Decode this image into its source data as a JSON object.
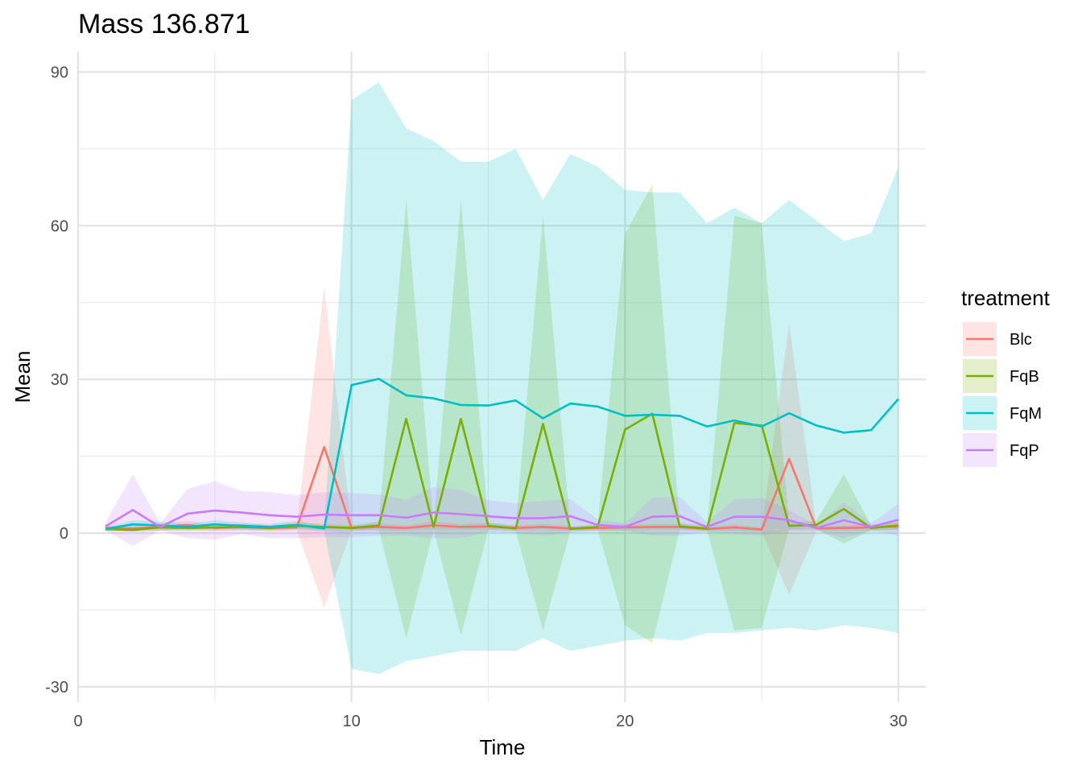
{
  "chart_data": {
    "type": "line",
    "title": "Mass 136.871",
    "xlabel": "Time",
    "ylabel": "Mean",
    "xlim": [
      0,
      31
    ],
    "ylim": [
      -33,
      94
    ],
    "xticks": [
      0,
      10,
      20,
      30
    ],
    "xtick_labels": [
      "0",
      "10",
      "20",
      "30"
    ],
    "yticks": [
      -30,
      0,
      30,
      60,
      90
    ],
    "ytick_labels": [
      "-30",
      "0",
      "30",
      "60",
      "90"
    ],
    "grid": true,
    "legend": {
      "title": "treatment",
      "position": "right"
    },
    "series": [
      {
        "name": "Blc",
        "color": "#F8766D",
        "x": [
          1,
          2,
          3,
          4,
          5,
          6,
          7,
          8,
          9,
          10,
          11,
          12,
          13,
          14,
          15,
          16,
          17,
          18,
          19,
          20,
          21,
          22,
          23,
          24,
          25,
          26,
          27,
          28,
          29,
          30
        ],
        "mean": [
          1.0,
          0.9,
          1.2,
          1.6,
          1.0,
          1.2,
          1.0,
          1.1,
          16.8,
          1.0,
          1.2,
          1.0,
          1.5,
          1.2,
          1.3,
          1.0,
          1.2,
          0.9,
          1.0,
          1.1,
          1.2,
          1.2,
          0.8,
          1.1,
          0.7,
          14.5,
          0.9,
          1.0,
          1.1,
          1.3
        ],
        "lower": [
          0.5,
          0.4,
          0.5,
          0.8,
          0.5,
          0.6,
          0.5,
          0.5,
          -14.5,
          0.5,
          0.5,
          0.5,
          0.7,
          0.6,
          0.6,
          0.5,
          0.6,
          0.4,
          0.5,
          0.5,
          0.6,
          0.6,
          0.4,
          0.5,
          0.3,
          -12.0,
          0.4,
          0.5,
          0.5,
          0.6
        ],
        "upper": [
          1.5,
          1.4,
          1.9,
          2.4,
          1.5,
          1.8,
          1.5,
          1.7,
          48.0,
          1.5,
          1.9,
          1.5,
          2.3,
          1.8,
          2.0,
          1.5,
          1.8,
          1.4,
          1.5,
          1.7,
          1.8,
          1.8,
          1.2,
          1.7,
          1.1,
          41.0,
          1.4,
          1.5,
          1.7,
          2.0
        ]
      },
      {
        "name": "FqB",
        "color": "#7CAE00",
        "x": [
          1,
          2,
          3,
          4,
          5,
          6,
          7,
          8,
          9,
          10,
          11,
          12,
          13,
          14,
          15,
          16,
          17,
          18,
          19,
          20,
          21,
          22,
          23,
          24,
          25,
          26,
          27,
          28,
          29,
          30
        ],
        "mean": [
          0.8,
          0.6,
          1.1,
          1.0,
          1.1,
          1.2,
          1.0,
          1.4,
          1.2,
          1.0,
          1.5,
          22.3,
          1.2,
          22.3,
          1.4,
          0.9,
          21.3,
          0.8,
          1.2,
          20.2,
          23.3,
          1.3,
          0.9,
          21.5,
          21.0,
          1.4,
          1.6,
          4.7,
          1.0,
          1.5
        ],
        "lower": [
          0.4,
          0.3,
          0.5,
          0.5,
          0.5,
          0.6,
          0.5,
          0.7,
          0.6,
          0.5,
          0.7,
          -20.5,
          0.6,
          -20.0,
          0.7,
          0.4,
          -19.0,
          0.4,
          0.6,
          -18.0,
          -21.5,
          0.6,
          0.4,
          -19.0,
          -18.5,
          0.7,
          0.8,
          -2.0,
          0.5,
          0.7
        ],
        "upper": [
          1.2,
          0.9,
          1.7,
          1.5,
          1.7,
          1.8,
          1.5,
          2.1,
          1.8,
          1.5,
          2.3,
          65.0,
          1.8,
          65.0,
          2.1,
          1.4,
          62.0,
          1.2,
          1.8,
          58.5,
          68.0,
          2.0,
          1.4,
          62.0,
          60.5,
          2.1,
          2.4,
          11.5,
          1.5,
          2.3
        ]
      },
      {
        "name": "FqM",
        "color": "#00BFC4",
        "x": [
          1,
          2,
          3,
          4,
          5,
          6,
          7,
          8,
          9,
          10,
          11,
          12,
          13,
          14,
          15,
          16,
          17,
          18,
          19,
          20,
          21,
          22,
          23,
          24,
          25,
          26,
          27,
          28,
          29,
          30
        ],
        "mean": [
          0.8,
          1.7,
          1.5,
          1.2,
          1.7,
          1.4,
          1.2,
          1.6,
          0.9,
          28.9,
          30.1,
          26.9,
          26.3,
          25.0,
          24.9,
          25.9,
          22.4,
          25.3,
          24.7,
          22.9,
          23.1,
          22.9,
          20.8,
          22.0,
          20.8,
          23.4,
          21.0,
          19.6,
          20.1,
          26.2
        ],
        "lower": [
          0.4,
          0.9,
          0.7,
          0.6,
          0.9,
          0.7,
          0.6,
          0.8,
          0.4,
          -26.5,
          -27.5,
          -25.0,
          -24.0,
          -23.0,
          -23.0,
          -23.0,
          -20.5,
          -23.0,
          -22.0,
          -21.0,
          -20.5,
          -21.0,
          -19.5,
          -19.5,
          -19.0,
          -18.5,
          -19.0,
          -18.0,
          -18.5,
          -19.5
        ],
        "upper": [
          1.2,
          2.5,
          2.3,
          1.8,
          2.5,
          2.1,
          1.8,
          2.4,
          1.4,
          84.5,
          88.0,
          79.0,
          76.5,
          72.5,
          72.5,
          75.0,
          65.0,
          74.0,
          71.5,
          67.0,
          66.5,
          66.5,
          60.5,
          63.5,
          60.5,
          65.0,
          61.0,
          57.0,
          58.5,
          71.5
        ]
      },
      {
        "name": "FqP",
        "color": "#C77CFF",
        "x": [
          1,
          2,
          3,
          4,
          5,
          6,
          7,
          8,
          9,
          10,
          11,
          12,
          13,
          14,
          15,
          16,
          17,
          18,
          19,
          20,
          21,
          22,
          23,
          24,
          25,
          26,
          27,
          28,
          29,
          30
        ],
        "mean": [
          1.3,
          4.5,
          1.2,
          3.8,
          4.4,
          4.0,
          3.5,
          3.2,
          3.6,
          3.5,
          3.5,
          3.0,
          4.0,
          3.7,
          3.3,
          2.9,
          2.9,
          3.3,
          1.6,
          1.2,
          3.2,
          3.3,
          1.2,
          3.2,
          3.2,
          2.5,
          1.0,
          2.5,
          1.2,
          2.6
        ],
        "lower": [
          0.5,
          -2.5,
          0.5,
          -1.0,
          -1.3,
          -0.2,
          -1.0,
          -1.0,
          -0.8,
          -0.8,
          -0.5,
          -0.5,
          -1.0,
          -1.0,
          0.2,
          0.0,
          -0.5,
          0.0,
          0.5,
          0.5,
          -0.5,
          -0.5,
          0.3,
          -0.2,
          -0.5,
          0.5,
          0.5,
          -1.0,
          0.5,
          -0.5
        ],
        "upper": [
          2.1,
          11.5,
          1.9,
          8.6,
          10.1,
          8.2,
          8.0,
          7.4,
          8.0,
          7.8,
          7.5,
          6.5,
          9.0,
          8.4,
          6.4,
          5.8,
          6.3,
          6.6,
          2.7,
          1.9,
          6.9,
          7.1,
          2.1,
          6.6,
          6.9,
          4.5,
          1.5,
          6.0,
          1.9,
          5.7
        ]
      }
    ]
  }
}
